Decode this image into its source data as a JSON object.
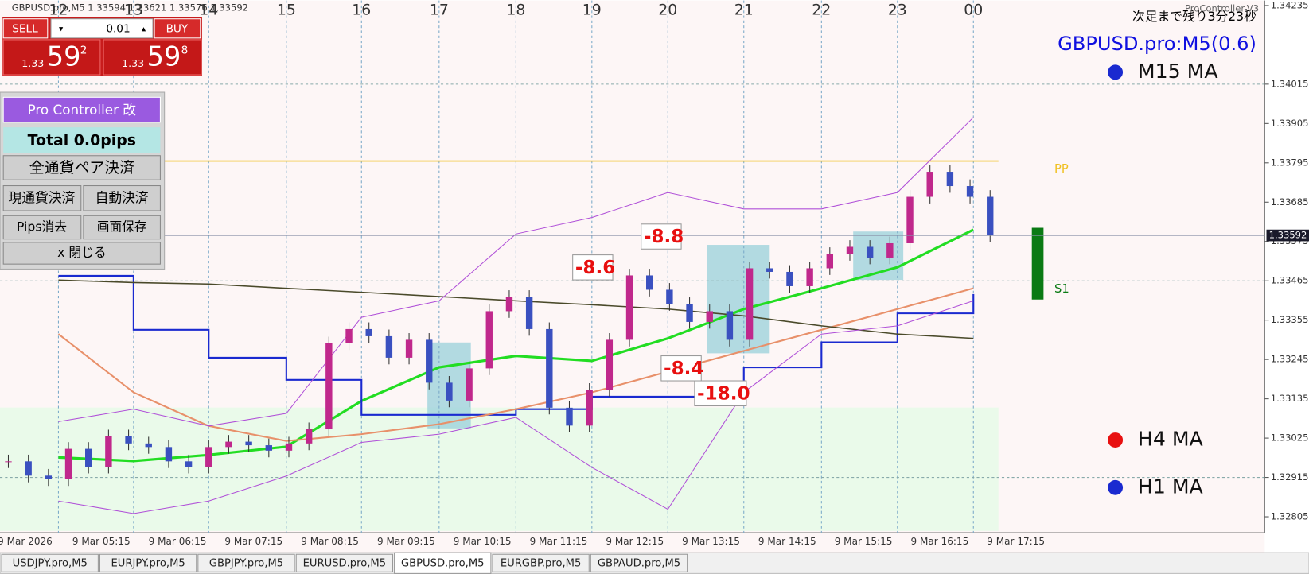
{
  "header": {
    "symbol_info": "GBPUSD.pro,M5  1.33594 1.33621 1.33576 1.33592",
    "indicator": "ProController-V3",
    "countdown": "次足まで残り3分23秒",
    "symbol_title": "GBPUSD.pro:M5(0.6)"
  },
  "order_panel": {
    "sell": "SELL",
    "buy": "BUY",
    "lot": "0.01",
    "sell_price": {
      "prefix": "1.33",
      "big": "59",
      "small": "2"
    },
    "buy_price": {
      "prefix": "1.33",
      "big": "59",
      "small": "8"
    }
  },
  "controller": {
    "title": "Pro Controller 改",
    "total": "Total   0.0pips",
    "close_all": "全通貨ペア決済",
    "close_current": "現通貨決済",
    "auto_close": "自動決済",
    "clear_pips": "Pips消去",
    "save_screen": "画面保存",
    "close": "x 閉じる"
  },
  "chart": {
    "price_ticks": [
      1.34235,
      1.34015,
      1.33905,
      1.33795,
      1.33685,
      1.33575,
      1.33465,
      1.33355,
      1.33245,
      1.33135,
      1.33025,
      1.32915,
      1.32805
    ],
    "current_price": 1.33592,
    "hour_labels": [
      "12",
      "13",
      "14",
      "15",
      "16",
      "17",
      "18",
      "19",
      "20",
      "21",
      "22",
      "23",
      "00"
    ],
    "time_labels": [
      "9 Mar 2026",
      "9 Mar 05:15",
      "9 Mar 06:15",
      "9 Mar 07:15",
      "9 Mar 08:15",
      "9 Mar 09:15",
      "9 Mar 10:15",
      "9 Mar 11:15",
      "9 Mar 12:15",
      "9 Mar 13:15",
      "9 Mar 14:15",
      "9 Mar 15:15",
      "9 Mar 16:15",
      "9 Mar 17:15"
    ],
    "closes": [
      1.3296,
      1.3292,
      1.3291,
      1.32995,
      1.32945,
      1.3303,
      1.3301,
      1.33,
      1.3296,
      1.32945,
      1.33,
      1.33015,
      1.33005,
      1.3299,
      1.3301,
      1.3305,
      1.3329,
      1.3333,
      1.3331,
      1.3325,
      1.333,
      1.3318,
      1.3313,
      1.3322,
      1.3338,
      1.3342,
      1.3333,
      1.3311,
      1.3306,
      1.3316,
      1.333,
      1.3348,
      1.3344,
      1.334,
      1.3335,
      1.3338,
      1.333,
      1.335,
      1.3349,
      1.3345,
      1.335,
      1.3354,
      1.3356,
      1.3353,
      1.3357,
      1.337,
      1.3377,
      1.3373,
      1.337,
      1.33592
    ],
    "indicators": [
      {
        "color": "#22dd22",
        "width": 3,
        "step": false,
        "values": [
          1.32971,
          1.32961,
          1.32978,
          1.33001,
          1.33129,
          1.33223,
          1.33255,
          1.33241,
          1.33304,
          1.33386,
          1.33444,
          1.33503,
          1.33608
        ]
      },
      {
        "color": "#1a2ad0",
        "width": 2,
        "step": true,
        "values": [
          1.33479,
          1.33328,
          1.3325,
          1.33188,
          1.3309,
          1.3309,
          1.33106,
          1.33141,
          1.33141,
          1.33223,
          1.33293,
          1.33374,
          1.33428
        ]
      },
      {
        "color": "#e8906a",
        "width": 2,
        "step": false,
        "values": [
          1.33316,
          1.33153,
          1.33059,
          1.33017,
          1.33036,
          1.33064,
          1.33106,
          1.33153,
          1.33211,
          1.33269,
          1.33328,
          1.33386,
          1.33444
        ]
      },
      {
        "color": "#4a4a2a",
        "width": 1.5,
        "step": false,
        "values": [
          1.33467,
          1.3346,
          1.33456,
          1.33444,
          1.33433,
          1.33421,
          1.33409,
          1.33398,
          1.33386,
          1.33367,
          1.33339,
          1.33316,
          1.33304
        ]
      },
      {
        "color": "#b050d8",
        "width": 1,
        "step": false,
        "values": [
          1.33071,
          1.33106,
          1.33059,
          1.33094,
          1.33363,
          1.33409,
          1.33596,
          1.33642,
          1.33712,
          1.33666,
          1.33666,
          1.33712,
          1.33922
        ]
      },
      {
        "color": "#b050d8",
        "width": 1,
        "step": false,
        "values": [
          1.32849,
          1.32814,
          1.32849,
          1.32919,
          1.33013,
          1.33036,
          1.33083,
          1.32943,
          1.32826,
          1.33153,
          1.33316,
          1.33339,
          1.33409
        ]
      }
    ],
    "levels": [
      {
        "name": "PP",
        "price": 1.338,
        "color": "#f0c020"
      },
      {
        "name": "S1",
        "price": 1.3345,
        "color": "#0a7a14"
      }
    ],
    "trade_labels": [
      "-8.6",
      "-8.8",
      "-8.4",
      "-18.0"
    ],
    "ma_labels": [
      "M15 MA",
      "H4 MA",
      "H1 MA"
    ]
  },
  "tabs": [
    "USDJPY.pro,M5",
    "EURJPY.pro,M5",
    "GBPJPY.pro,M5",
    "EURUSD.pro,M5",
    "GBPUSD.pro,M5",
    "EURGBP.pro,M5",
    "GBPAUD.pro,M5"
  ]
}
